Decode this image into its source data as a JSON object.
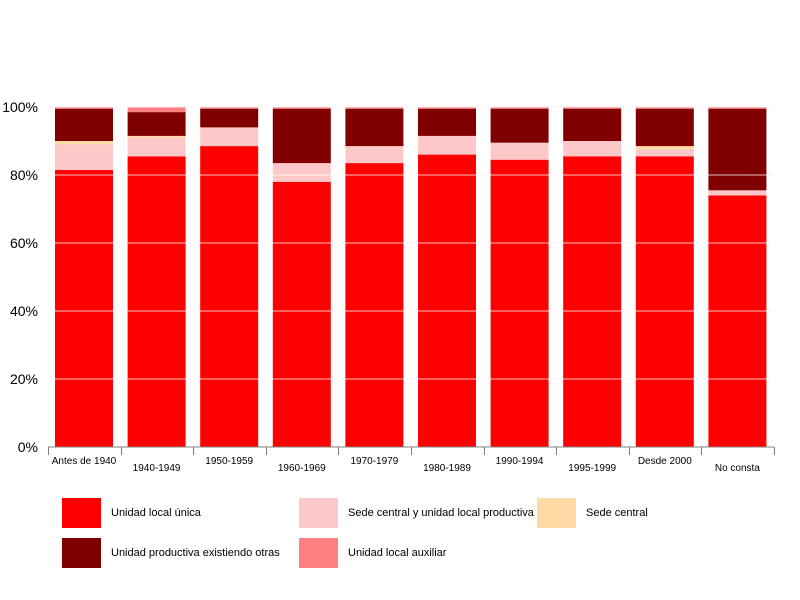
{
  "chart_data": {
    "type": "bar",
    "stacked": true,
    "categories": [
      "Antes de 1940",
      "1940-1949",
      "1950-1959",
      "1960-1969",
      "1970-1979",
      "1980-1989",
      "1990-1994",
      "1995-1999",
      "Desde 2000",
      "No consta"
    ],
    "y_ticks": [
      "0%",
      "20%",
      "40%",
      "60%",
      "80%",
      "100%"
    ],
    "ylim": [
      0,
      100
    ],
    "grid": true,
    "legend_position": "bottom",
    "series": [
      {
        "name": "Unidad local única",
        "color": "#FF0000",
        "values": [
          81.5,
          85.5,
          88.5,
          78,
          83.5,
          86,
          84.5,
          85.5,
          85.5,
          74
        ]
      },
      {
        "name": "Sede central y unidad local productiva",
        "color": "#FFC8C8",
        "values": [
          7.5,
          5.5,
          5.5,
          5.5,
          5,
          5.5,
          5,
          4.5,
          2,
          1.5
        ]
      },
      {
        "name": "Sede central",
        "color": "#FFDAA5",
        "values": [
          1,
          0.5,
          0,
          0,
          0,
          0,
          0,
          0,
          1,
          0
        ]
      },
      {
        "name": "Unidad productiva existiendo otras",
        "color": "#800000",
        "values": [
          9.5,
          7,
          5.5,
          16,
          11,
          8,
          10,
          9.5,
          11,
          24
        ]
      },
      {
        "name": "Unidad local auxiliar",
        "color": "#FF8080",
        "values": [
          0.5,
          1.5,
          0.5,
          0.5,
          0.5,
          0.5,
          0.5,
          0.5,
          0.5,
          0.5
        ]
      }
    ]
  }
}
